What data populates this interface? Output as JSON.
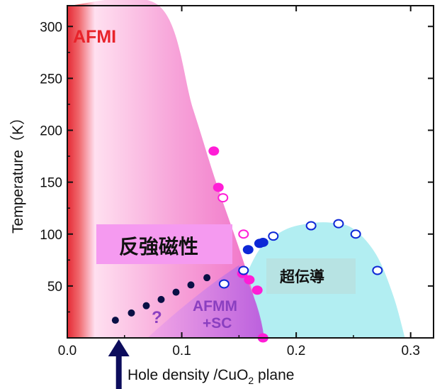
{
  "chart_data": {
    "type": "scatter",
    "title": "",
    "xlabel": "Hole density /CuO",
    "xlabel_sub": "2",
    "xlabel_suffix": " plane",
    "ylabel": "Temperature（K）",
    "xlim": [
      0.0,
      0.32
    ],
    "ylim": [
      0,
      320
    ],
    "xticks": [
      0.0,
      0.1,
      0.2,
      0.3
    ],
    "xtick_labels": [
      "0.0",
      "0.1",
      "0.2",
      "0.3"
    ],
    "yticks": [
      50,
      100,
      150,
      200,
      250,
      300
    ],
    "ytick_labels": [
      "50",
      "100",
      "150",
      "200",
      "250",
      "300"
    ],
    "grid": false,
    "regions": {
      "afmi": {
        "label": "AFMI",
        "color": "#e8232a",
        "fill": "#f07ec6"
      },
      "afm_jp": {
        "label": "反強磁性",
        "fill": "#f59af0"
      },
      "afmm_sc": {
        "label_line1": "AFMM",
        "label_line2": "+SC",
        "color": "#8a3fc0",
        "fill": "#c86ee8"
      },
      "sc": {
        "label": "超伝導",
        "fill": "#b2eef2",
        "label_box": "#b7e3e3"
      },
      "question": {
        "label": "?",
        "color": "#8a3fc0"
      }
    },
    "boundaries": {
      "afmi": {
        "x": [
          0.0,
          0.08,
          0.11,
          0.13,
          0.155,
          0.17,
          0.172
        ],
        "y": [
          320,
          320,
          220,
          150,
          70,
          10,
          0
        ]
      },
      "sc_dome": {
        "x": [
          0.158,
          0.17,
          0.19,
          0.21,
          0.23,
          0.25,
          0.27,
          0.285,
          0.295
        ],
        "y": [
          65,
          88,
          104,
          110,
          111,
          105,
          80,
          40,
          0
        ]
      },
      "afmm": {
        "x": [
          0.07,
          0.15,
          0.172
        ],
        "y": [
          0,
          70,
          0
        ]
      }
    },
    "series": [
      {
        "name": "",
        "marker": "filled",
        "color": "#ff1dd6",
        "x": [
          0.128,
          0.132,
          0.153,
          0.159,
          0.166,
          0.171
        ],
        "y": [
          180,
          145,
          62,
          56,
          46,
          0
        ]
      },
      {
        "name": "",
        "marker": "open",
        "color": "#ff1dd6",
        "x": [
          0.136,
          0.154
        ],
        "y": [
          135,
          100
        ]
      },
      {
        "name": "",
        "marker": "filled",
        "color": "#0d27d6",
        "x": [
          0.158,
          0.168,
          0.171
        ],
        "y": [
          85,
          91,
          92
        ]
      },
      {
        "name": "",
        "marker": "open",
        "color": "#0d27d6",
        "x": [
          0.137,
          0.154,
          0.18,
          0.213,
          0.237,
          0.252,
          0.271
        ],
        "y": [
          52,
          65,
          98,
          108,
          110,
          100,
          65
        ]
      },
      {
        "name": "",
        "marker": "dots",
        "color": "#0a0f45",
        "x": [
          0.042,
          0.056,
          0.069,
          0.082,
          0.095,
          0.108,
          0.122
        ],
        "y": [
          17,
          24,
          31,
          37,
          44,
          51,
          58
        ]
      }
    ],
    "arrow": {
      "x": 0.045,
      "direction": "up",
      "color": "#0c0c5c"
    }
  }
}
